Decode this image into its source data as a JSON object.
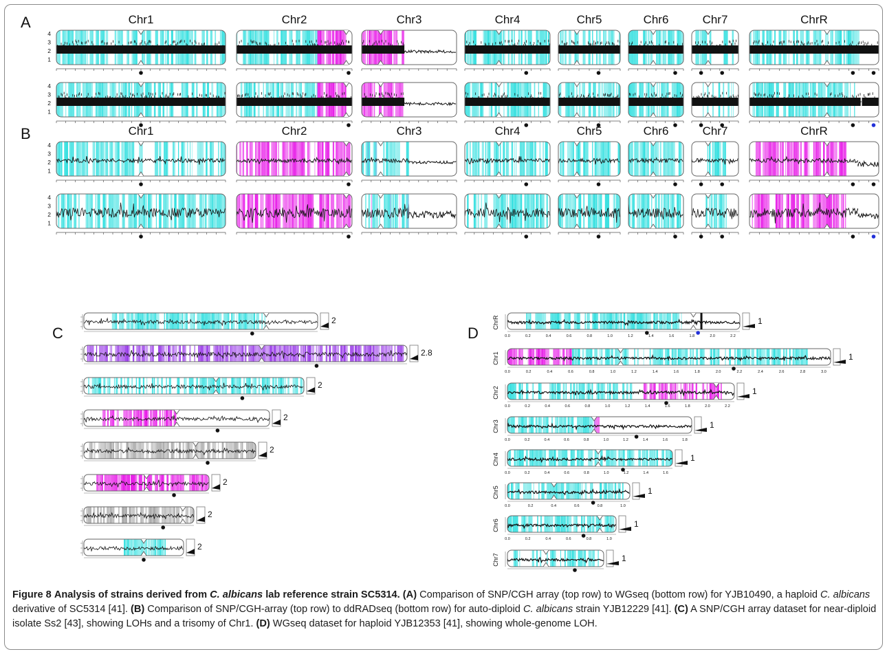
{
  "panels": {
    "A": {
      "letter": "A",
      "chromosomes": [
        "Chr1",
        "Chr2",
        "Chr3",
        "Chr4",
        "Chr5",
        "Chr6",
        "Chr7",
        "ChrR"
      ],
      "axis_ticks": [
        "4",
        "3",
        "2",
        "1"
      ],
      "rows": [
        "SNP/CGH array",
        "WGseq"
      ]
    },
    "B": {
      "letter": "B",
      "chromosomes": [
        "Chr1",
        "Chr2",
        "Chr3",
        "Chr4",
        "Chr5",
        "Chr6",
        "Chr7",
        "ChrR"
      ],
      "axis_ticks": [
        "4",
        "3",
        "2",
        "1"
      ],
      "rows": [
        "SNP/CGH-array",
        "ddRADseq"
      ]
    },
    "C": {
      "letter": "C",
      "copy_numbers": [
        "2",
        "2.8",
        "2",
        "2",
        "2",
        "2",
        "2",
        "2"
      ]
    },
    "D": {
      "letter": "D",
      "chromosomes": [
        "ChrR",
        "Chr1",
        "Chr2",
        "Chr3",
        "Chr4",
        "Chr5",
        "Chr6",
        "Chr7"
      ],
      "copy_numbers": [
        "1",
        "1",
        "1",
        "1",
        "1",
        "1",
        "1",
        "1"
      ]
    }
  },
  "caption": {
    "figure_label": "Figure 8",
    "title_part1": "Analysis of strains derived from ",
    "title_species": "C. albicans",
    "title_part2": " lab reference strain SC5314.",
    "a_label": "(A)",
    "a_text1": " Comparison of SNP/CGH array (top row) to WGseq (bottom row) for YJB10490, a haploid ",
    "a_species": "C. albicans",
    "a_text2": " derivative of SC5314 [41]. ",
    "b_label": "(B)",
    "b_text1": " Comparison of SNP/CGH-array (top row) to ddRADseq (bottom row) for auto-diploid ",
    "b_species": "C. albicans",
    "b_text2": " strain YJB12229 [41]. ",
    "c_label": "(C)",
    "c_text": " A SNP/CGH array dataset for near-diploid isolate Ss2 [43], showing LOHs and a trisomy of Chr1. ",
    "d_label": "(D)",
    "d_text": " WGseq dataset for haploid YJB12353 [41], showing whole-genome LOH."
  },
  "colors": {
    "cyan": "#36e0e0",
    "magenta": "#e81ee8",
    "purple": "#9a3de8",
    "gray": "#a8a8a8",
    "trace": "#111111",
    "outline": "#666666",
    "blue_marker": "#2230d8"
  }
}
